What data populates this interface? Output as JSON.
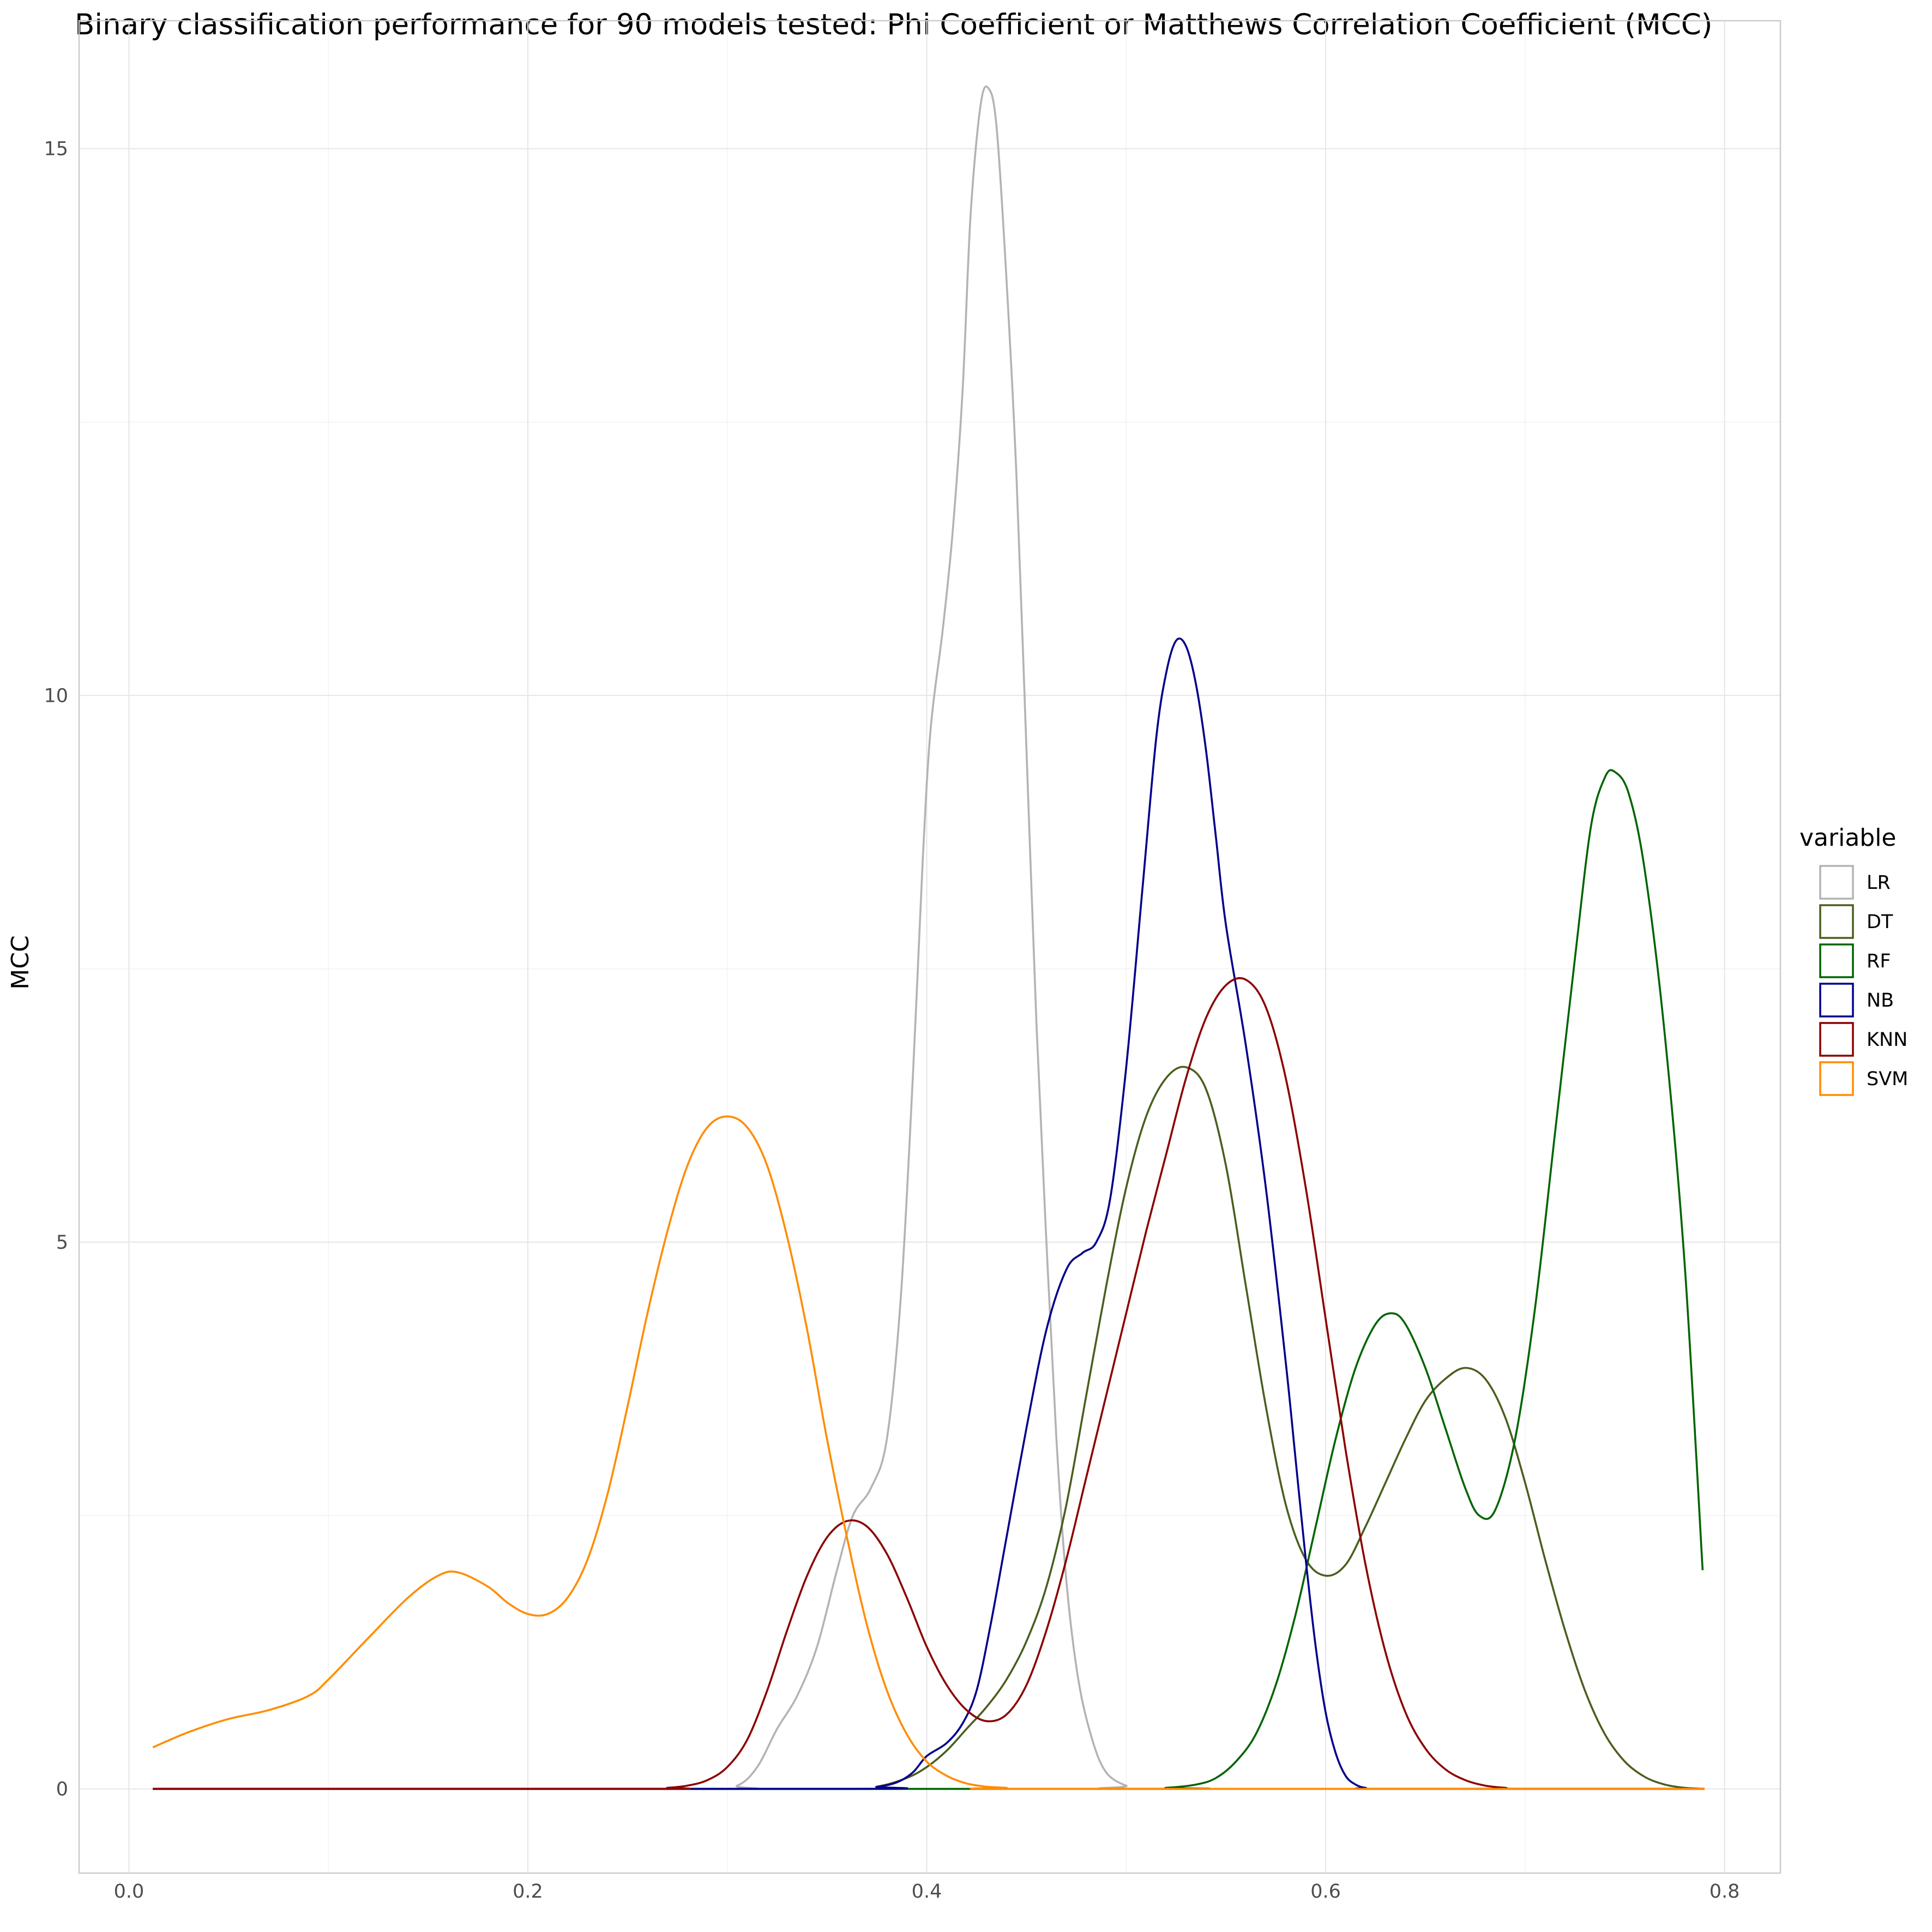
{
  "chart_data": {
    "type": "line",
    "title": "Binary classification performance for 90 models tested: Phi Coefficient or Matthews Correlation Coefficient (MCC)",
    "xlabel": "",
    "ylabel": "MCC",
    "xlim": [
      -0.025,
      0.828
    ],
    "ylim": [
      -0.77,
      16.17
    ],
    "x_ticks": [
      0.0,
      0.2,
      0.4,
      0.6,
      0.8
    ],
    "x_tick_labels": [
      "0.0",
      "0.2",
      "0.4",
      "0.6",
      "0.8"
    ],
    "y_ticks": [
      0,
      5,
      10,
      15
    ],
    "y_tick_labels": [
      "0",
      "5",
      "10",
      "15"
    ],
    "grid": true,
    "legend_title": "variable",
    "legend_position": "right",
    "series": [
      {
        "name": "LR",
        "color": "#b3b3b3",
        "points": [
          [
            0.012,
            0
          ],
          [
            0.29,
            0
          ],
          [
            0.305,
            0.03
          ],
          [
            0.315,
            0.2
          ],
          [
            0.325,
            0.55
          ],
          [
            0.335,
            0.85
          ],
          [
            0.345,
            1.3
          ],
          [
            0.355,
            2.0
          ],
          [
            0.363,
            2.5
          ],
          [
            0.372,
            2.75
          ],
          [
            0.38,
            3.2
          ],
          [
            0.387,
            4.5
          ],
          [
            0.393,
            6.5
          ],
          [
            0.398,
            8.5
          ],
          [
            0.402,
            9.7
          ],
          [
            0.408,
            10.6
          ],
          [
            0.413,
            11.5
          ],
          [
            0.418,
            12.8
          ],
          [
            0.422,
            14.4
          ],
          [
            0.427,
            15.4
          ],
          [
            0.431,
            15.55
          ],
          [
            0.435,
            15.2
          ],
          [
            0.44,
            13.8
          ],
          [
            0.445,
            12.0
          ],
          [
            0.45,
            9.5
          ],
          [
            0.455,
            7.0
          ],
          [
            0.46,
            5.0
          ],
          [
            0.465,
            3.2
          ],
          [
            0.47,
            1.9
          ],
          [
            0.476,
            1.0
          ],
          [
            0.483,
            0.45
          ],
          [
            0.49,
            0.15
          ],
          [
            0.5,
            0.03
          ],
          [
            0.51,
            0
          ],
          [
            0.79,
            0
          ]
        ]
      },
      {
        "name": "DT",
        "color": "#4a5e1e",
        "points": [
          [
            0.012,
            0
          ],
          [
            0.36,
            0
          ],
          [
            0.375,
            0.02
          ],
          [
            0.39,
            0.1
          ],
          [
            0.4,
            0.2
          ],
          [
            0.41,
            0.35
          ],
          [
            0.42,
            0.55
          ],
          [
            0.43,
            0.75
          ],
          [
            0.44,
            1.0
          ],
          [
            0.45,
            1.35
          ],
          [
            0.46,
            1.85
          ],
          [
            0.47,
            2.6
          ],
          [
            0.48,
            3.6
          ],
          [
            0.49,
            4.6
          ],
          [
            0.5,
            5.5
          ],
          [
            0.51,
            6.15
          ],
          [
            0.52,
            6.5
          ],
          [
            0.53,
            6.6
          ],
          [
            0.54,
            6.4
          ],
          [
            0.55,
            5.7
          ],
          [
            0.56,
            4.6
          ],
          [
            0.57,
            3.5
          ],
          [
            0.58,
            2.6
          ],
          [
            0.59,
            2.1
          ],
          [
            0.6,
            1.95
          ],
          [
            0.61,
            2.05
          ],
          [
            0.62,
            2.4
          ],
          [
            0.63,
            2.8
          ],
          [
            0.64,
            3.2
          ],
          [
            0.65,
            3.55
          ],
          [
            0.66,
            3.75
          ],
          [
            0.67,
            3.85
          ],
          [
            0.68,
            3.75
          ],
          [
            0.69,
            3.4
          ],
          [
            0.7,
            2.8
          ],
          [
            0.71,
            2.1
          ],
          [
            0.72,
            1.45
          ],
          [
            0.73,
            0.9
          ],
          [
            0.74,
            0.5
          ],
          [
            0.75,
            0.25
          ],
          [
            0.76,
            0.11
          ],
          [
            0.77,
            0.04
          ],
          [
            0.78,
            0.01
          ],
          [
            0.79,
            0
          ]
        ]
      },
      {
        "name": "RF",
        "color": "#006400",
        "points": [
          [
            0.012,
            0
          ],
          [
            0.5,
            0
          ],
          [
            0.52,
            0.01
          ],
          [
            0.535,
            0.04
          ],
          [
            0.545,
            0.1
          ],
          [
            0.555,
            0.25
          ],
          [
            0.565,
            0.5
          ],
          [
            0.575,
            0.95
          ],
          [
            0.585,
            1.6
          ],
          [
            0.595,
            2.4
          ],
          [
            0.605,
            3.2
          ],
          [
            0.615,
            3.85
          ],
          [
            0.625,
            4.25
          ],
          [
            0.633,
            4.35
          ],
          [
            0.64,
            4.25
          ],
          [
            0.65,
            3.85
          ],
          [
            0.66,
            3.3
          ],
          [
            0.67,
            2.75
          ],
          [
            0.677,
            2.5
          ],
          [
            0.685,
            2.55
          ],
          [
            0.695,
            3.2
          ],
          [
            0.705,
            4.4
          ],
          [
            0.715,
            6.0
          ],
          [
            0.725,
            7.6
          ],
          [
            0.733,
            8.8
          ],
          [
            0.74,
            9.25
          ],
          [
            0.745,
            9.3
          ],
          [
            0.752,
            9.1
          ],
          [
            0.76,
            8.4
          ],
          [
            0.77,
            6.9
          ],
          [
            0.78,
            4.8
          ],
          [
            0.789,
            2.0
          ]
        ]
      },
      {
        "name": "NB",
        "color": "#00008b",
        "points": [
          [
            0.012,
            0
          ],
          [
            0.36,
            0
          ],
          [
            0.375,
            0.02
          ],
          [
            0.385,
            0.06
          ],
          [
            0.393,
            0.15
          ],
          [
            0.4,
            0.3
          ],
          [
            0.41,
            0.42
          ],
          [
            0.418,
            0.6
          ],
          [
            0.425,
            0.9
          ],
          [
            0.432,
            1.5
          ],
          [
            0.44,
            2.3
          ],
          [
            0.45,
            3.3
          ],
          [
            0.46,
            4.2
          ],
          [
            0.47,
            4.75
          ],
          [
            0.478,
            4.9
          ],
          [
            0.485,
            5.0
          ],
          [
            0.492,
            5.4
          ],
          [
            0.5,
            6.6
          ],
          [
            0.508,
            8.2
          ],
          [
            0.515,
            9.6
          ],
          [
            0.52,
            10.2
          ],
          [
            0.525,
            10.5
          ],
          [
            0.53,
            10.45
          ],
          [
            0.535,
            10.1
          ],
          [
            0.54,
            9.5
          ],
          [
            0.545,
            8.7
          ],
          [
            0.55,
            7.9
          ],
          [
            0.56,
            6.8
          ],
          [
            0.57,
            5.5
          ],
          [
            0.58,
            3.9
          ],
          [
            0.585,
            3.0
          ],
          [
            0.59,
            2.1
          ],
          [
            0.595,
            1.3
          ],
          [
            0.6,
            0.7
          ],
          [
            0.605,
            0.33
          ],
          [
            0.61,
            0.12
          ],
          [
            0.615,
            0.04
          ],
          [
            0.62,
            0.01
          ],
          [
            0.63,
            0
          ],
          [
            0.79,
            0
          ]
        ]
      },
      {
        "name": "KNN",
        "color": "#8b0000",
        "points": [
          [
            0.012,
            0
          ],
          [
            0.26,
            0
          ],
          [
            0.27,
            0.01
          ],
          [
            0.28,
            0.03
          ],
          [
            0.29,
            0.08
          ],
          [
            0.3,
            0.2
          ],
          [
            0.31,
            0.45
          ],
          [
            0.32,
            0.9
          ],
          [
            0.33,
            1.45
          ],
          [
            0.34,
            1.95
          ],
          [
            0.35,
            2.3
          ],
          [
            0.36,
            2.45
          ],
          [
            0.37,
            2.4
          ],
          [
            0.38,
            2.15
          ],
          [
            0.39,
            1.75
          ],
          [
            0.4,
            1.3
          ],
          [
            0.41,
            0.95
          ],
          [
            0.42,
            0.72
          ],
          [
            0.43,
            0.62
          ],
          [
            0.44,
            0.68
          ],
          [
            0.45,
            0.95
          ],
          [
            0.46,
            1.45
          ],
          [
            0.47,
            2.1
          ],
          [
            0.48,
            2.85
          ],
          [
            0.49,
            3.6
          ],
          [
            0.5,
            4.35
          ],
          [
            0.51,
            5.1
          ],
          [
            0.52,
            5.8
          ],
          [
            0.53,
            6.5
          ],
          [
            0.54,
            7.05
          ],
          [
            0.55,
            7.35
          ],
          [
            0.56,
            7.4
          ],
          [
            0.57,
            7.15
          ],
          [
            0.58,
            6.5
          ],
          [
            0.59,
            5.5
          ],
          [
            0.6,
            4.3
          ],
          [
            0.61,
            3.1
          ],
          [
            0.62,
            2.05
          ],
          [
            0.63,
            1.25
          ],
          [
            0.64,
            0.7
          ],
          [
            0.65,
            0.37
          ],
          [
            0.66,
            0.18
          ],
          [
            0.67,
            0.08
          ],
          [
            0.68,
            0.03
          ],
          [
            0.69,
            0.01
          ],
          [
            0.7,
            0
          ],
          [
            0.79,
            0
          ]
        ]
      },
      {
        "name": "SVM",
        "color": "#ff8c00",
        "points": [
          [
            0.012,
            0.38
          ],
          [
            0.03,
            0.52
          ],
          [
            0.05,
            0.64
          ],
          [
            0.07,
            0.72
          ],
          [
            0.09,
            0.85
          ],
          [
            0.1,
            1.0
          ],
          [
            0.12,
            1.38
          ],
          [
            0.14,
            1.75
          ],
          [
            0.155,
            1.95
          ],
          [
            0.165,
            1.98
          ],
          [
            0.18,
            1.85
          ],
          [
            0.19,
            1.7
          ],
          [
            0.2,
            1.6
          ],
          [
            0.21,
            1.6
          ],
          [
            0.22,
            1.75
          ],
          [
            0.23,
            2.1
          ],
          [
            0.24,
            2.7
          ],
          [
            0.25,
            3.5
          ],
          [
            0.26,
            4.35
          ],
          [
            0.27,
            5.1
          ],
          [
            0.28,
            5.7
          ],
          [
            0.29,
            6.05
          ],
          [
            0.3,
            6.15
          ],
          [
            0.31,
            6.05
          ],
          [
            0.32,
            5.7
          ],
          [
            0.33,
            5.05
          ],
          [
            0.34,
            4.2
          ],
          [
            0.35,
            3.2
          ],
          [
            0.36,
            2.3
          ],
          [
            0.37,
            1.5
          ],
          [
            0.38,
            0.9
          ],
          [
            0.39,
            0.5
          ],
          [
            0.4,
            0.25
          ],
          [
            0.41,
            0.12
          ],
          [
            0.42,
            0.05
          ],
          [
            0.43,
            0.02
          ],
          [
            0.44,
            0.01
          ],
          [
            0.45,
            0
          ],
          [
            0.79,
            0
          ]
        ]
      }
    ]
  }
}
